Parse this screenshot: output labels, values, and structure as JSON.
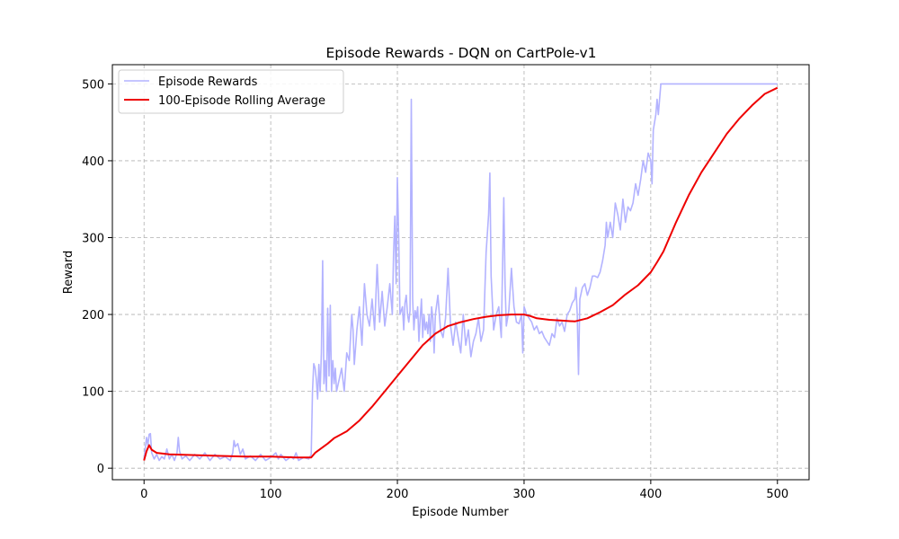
{
  "chart_data": {
    "type": "line",
    "title": "Episode Rewards - DQN on CartPole-v1",
    "xlabel": "Episode Number",
    "ylabel": "Reward",
    "xlim": [
      -25,
      525
    ],
    "ylim": [
      -15,
      525
    ],
    "xticks": [
      0,
      100,
      200,
      300,
      400,
      500
    ],
    "yticks": [
      0,
      100,
      200,
      300,
      400,
      500
    ],
    "grid": true,
    "legend_position": "top-left",
    "series": [
      {
        "name": "Episode Rewards",
        "color": "#b3b3ff",
        "points": [
          [
            0,
            12
          ],
          [
            2,
            40
          ],
          [
            3,
            30
          ],
          [
            4,
            44
          ],
          [
            5,
            45
          ],
          [
            6,
            20
          ],
          [
            8,
            12
          ],
          [
            10,
            18
          ],
          [
            12,
            10
          ],
          [
            14,
            15
          ],
          [
            16,
            12
          ],
          [
            18,
            25
          ],
          [
            20,
            12
          ],
          [
            22,
            18
          ],
          [
            24,
            10
          ],
          [
            26,
            20
          ],
          [
            27,
            40
          ],
          [
            28,
            22
          ],
          [
            30,
            12
          ],
          [
            33,
            16
          ],
          [
            36,
            10
          ],
          [
            40,
            18
          ],
          [
            44,
            12
          ],
          [
            48,
            20
          ],
          [
            52,
            10
          ],
          [
            56,
            18
          ],
          [
            60,
            12
          ],
          [
            64,
            15
          ],
          [
            68,
            10
          ],
          [
            70,
            20
          ],
          [
            71,
            36
          ],
          [
            72,
            28
          ],
          [
            74,
            32
          ],
          [
            76,
            18
          ],
          [
            78,
            25
          ],
          [
            80,
            12
          ],
          [
            84,
            16
          ],
          [
            88,
            10
          ],
          [
            92,
            18
          ],
          [
            96,
            10
          ],
          [
            100,
            14
          ],
          [
            104,
            20
          ],
          [
            106,
            12
          ],
          [
            108,
            18
          ],
          [
            112,
            10
          ],
          [
            116,
            15
          ],
          [
            118,
            12
          ],
          [
            120,
            20
          ],
          [
            122,
            10
          ],
          [
            126,
            14
          ],
          [
            130,
            12
          ],
          [
            132,
            18
          ],
          [
            133,
            100
          ],
          [
            134,
            136
          ],
          [
            135,
            130
          ],
          [
            136,
            115
          ],
          [
            137,
            90
          ],
          [
            138,
            135
          ],
          [
            139,
            100
          ],
          [
            140,
            150
          ],
          [
            141,
            270
          ],
          [
            142,
            110
          ],
          [
            143,
            140
          ],
          [
            144,
            100
          ],
          [
            145,
            208
          ],
          [
            146,
            120
          ],
          [
            147,
            212
          ],
          [
            148,
            100
          ],
          [
            149,
            140
          ],
          [
            150,
            110
          ],
          [
            151,
            130
          ],
          [
            152,
            100
          ],
          [
            154,
            115
          ],
          [
            156,
            130
          ],
          [
            158,
            100
          ],
          [
            160,
            150
          ],
          [
            162,
            140
          ],
          [
            164,
            200
          ],
          [
            165,
            180
          ],
          [
            166,
            135
          ],
          [
            168,
            180
          ],
          [
            170,
            210
          ],
          [
            172,
            160
          ],
          [
            174,
            240
          ],
          [
            176,
            200
          ],
          [
            178,
            185
          ],
          [
            180,
            220
          ],
          [
            182,
            180
          ],
          [
            184,
            265
          ],
          [
            186,
            190
          ],
          [
            188,
            230
          ],
          [
            190,
            185
          ],
          [
            192,
            210
          ],
          [
            194,
            240
          ],
          [
            196,
            200
          ],
          [
            197,
            280
          ],
          [
            198,
            328
          ],
          [
            199,
            240
          ],
          [
            200,
            378
          ],
          [
            201,
            300
          ],
          [
            202,
            200
          ],
          [
            203,
            205
          ],
          [
            204,
            210
          ],
          [
            205,
            180
          ],
          [
            206,
            215
          ],
          [
            207,
            225
          ],
          [
            208,
            200
          ],
          [
            209,
            190
          ],
          [
            210,
            205
          ],
          [
            211,
            480
          ],
          [
            212,
            220
          ],
          [
            213,
            180
          ],
          [
            214,
            205
          ],
          [
            215,
            195
          ],
          [
            216,
            210
          ],
          [
            217,
            165
          ],
          [
            218,
            195
          ],
          [
            219,
            220
          ],
          [
            220,
            170
          ],
          [
            221,
            200
          ],
          [
            222,
            180
          ],
          [
            223,
            190
          ],
          [
            224,
            175
          ],
          [
            225,
            200
          ],
          [
            226,
            165
          ],
          [
            227,
            210
          ],
          [
            228,
            195
          ],
          [
            229,
            150
          ],
          [
            230,
            200
          ],
          [
            232,
            225
          ],
          [
            234,
            180
          ],
          [
            236,
            170
          ],
          [
            238,
            195
          ],
          [
            240,
            260
          ],
          [
            242,
            185
          ],
          [
            244,
            160
          ],
          [
            246,
            190
          ],
          [
            248,
            170
          ],
          [
            250,
            150
          ],
          [
            252,
            200
          ],
          [
            254,
            160
          ],
          [
            256,
            180
          ],
          [
            258,
            145
          ],
          [
            260,
            165
          ],
          [
            262,
            175
          ],
          [
            264,
            195
          ],
          [
            266,
            165
          ],
          [
            268,
            180
          ],
          [
            270,
            280
          ],
          [
            272,
            330
          ],
          [
            273,
            384
          ],
          [
            274,
            250
          ],
          [
            276,
            180
          ],
          [
            278,
            200
          ],
          [
            280,
            210
          ],
          [
            282,
            170
          ],
          [
            284,
            352
          ],
          [
            285,
            240
          ],
          [
            286,
            185
          ],
          [
            288,
            205
          ],
          [
            290,
            260
          ],
          [
            292,
            210
          ],
          [
            294,
            190
          ],
          [
            296,
            188
          ],
          [
            298,
            200
          ],
          [
            299,
            150
          ],
          [
            300,
            210
          ],
          [
            302,
            200
          ],
          [
            304,
            195
          ],
          [
            306,
            190
          ],
          [
            308,
            180
          ],
          [
            310,
            185
          ],
          [
            312,
            175
          ],
          [
            314,
            178
          ],
          [
            316,
            170
          ],
          [
            318,
            165
          ],
          [
            320,
            160
          ],
          [
            322,
            175
          ],
          [
            324,
            170
          ],
          [
            326,
            195
          ],
          [
            328,
            185
          ],
          [
            330,
            190
          ],
          [
            332,
            178
          ],
          [
            334,
            200
          ],
          [
            336,
            205
          ],
          [
            338,
            215
          ],
          [
            340,
            220
          ],
          [
            341,
            235
          ],
          [
            342,
            200
          ],
          [
            343,
            122
          ],
          [
            344,
            220
          ],
          [
            346,
            235
          ],
          [
            348,
            240
          ],
          [
            350,
            225
          ],
          [
            352,
            235
          ],
          [
            354,
            250
          ],
          [
            356,
            250
          ],
          [
            358,
            248
          ],
          [
            360,
            255
          ],
          [
            362,
            270
          ],
          [
            364,
            290
          ],
          [
            365,
            320
          ],
          [
            366,
            300
          ],
          [
            368,
            320
          ],
          [
            370,
            300
          ],
          [
            372,
            345
          ],
          [
            374,
            330
          ],
          [
            376,
            310
          ],
          [
            378,
            350
          ],
          [
            380,
            320
          ],
          [
            382,
            340
          ],
          [
            384,
            335
          ],
          [
            386,
            345
          ],
          [
            388,
            370
          ],
          [
            390,
            355
          ],
          [
            392,
            375
          ],
          [
            394,
            400
          ],
          [
            396,
            385
          ],
          [
            398,
            410
          ],
          [
            400,
            400
          ],
          [
            401,
            370
          ],
          [
            402,
            440
          ],
          [
            404,
            460
          ],
          [
            405,
            480
          ],
          [
            406,
            460
          ],
          [
            408,
            500
          ],
          [
            420,
            500
          ],
          [
            440,
            500
          ],
          [
            460,
            500
          ],
          [
            480,
            500
          ],
          [
            500,
            500
          ]
        ]
      },
      {
        "name": "100-Episode Rolling Average",
        "color": "#ee0000",
        "points": [
          [
            0,
            10
          ],
          [
            2,
            22
          ],
          [
            4,
            30
          ],
          [
            6,
            24
          ],
          [
            10,
            20
          ],
          [
            20,
            18
          ],
          [
            40,
            17
          ],
          [
            60,
            16
          ],
          [
            80,
            15
          ],
          [
            100,
            15
          ],
          [
            120,
            14
          ],
          [
            132,
            14
          ],
          [
            135,
            20
          ],
          [
            140,
            26
          ],
          [
            145,
            32
          ],
          [
            150,
            39
          ],
          [
            160,
            48
          ],
          [
            170,
            62
          ],
          [
            180,
            80
          ],
          [
            190,
            100
          ],
          [
            200,
            120
          ],
          [
            210,
            140
          ],
          [
            220,
            160
          ],
          [
            230,
            175
          ],
          [
            240,
            185
          ],
          [
            250,
            190
          ],
          [
            260,
            194
          ],
          [
            270,
            197
          ],
          [
            280,
            199
          ],
          [
            290,
            200
          ],
          [
            300,
            200
          ],
          [
            305,
            198
          ],
          [
            310,
            195
          ],
          [
            320,
            193
          ],
          [
            330,
            192
          ],
          [
            340,
            191
          ],
          [
            350,
            195
          ],
          [
            360,
            203
          ],
          [
            370,
            212
          ],
          [
            380,
            226
          ],
          [
            390,
            238
          ],
          [
            400,
            255
          ],
          [
            405,
            268
          ],
          [
            410,
            282
          ],
          [
            420,
            320
          ],
          [
            430,
            355
          ],
          [
            440,
            385
          ],
          [
            450,
            410
          ],
          [
            460,
            435
          ],
          [
            470,
            455
          ],
          [
            480,
            472
          ],
          [
            490,
            487
          ],
          [
            500,
            495
          ]
        ]
      }
    ]
  }
}
